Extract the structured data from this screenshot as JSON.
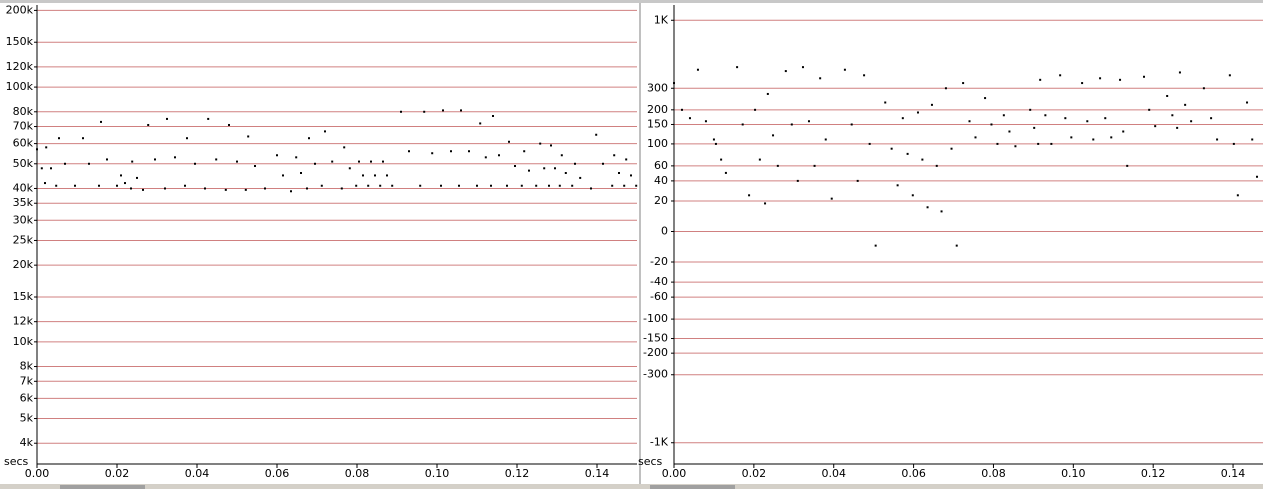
{
  "chart_data": [
    {
      "type": "scatter",
      "x_label": "secs",
      "yscale": "log",
      "grid": true,
      "grid_color": "#d08080",
      "color": "#000000",
      "xlim": [
        0,
        0.15
      ],
      "ylim": [
        3500,
        210000
      ],
      "xticks": [
        {
          "value": 0,
          "label": "0.00"
        },
        {
          "value": 0.02,
          "label": "0.02"
        },
        {
          "value": 0.04,
          "label": "0.04"
        },
        {
          "value": 0.06,
          "label": "0.06"
        },
        {
          "value": 0.08,
          "label": "0.08"
        },
        {
          "value": 0.1,
          "label": "0.10"
        },
        {
          "value": 0.12,
          "label": "0.12"
        },
        {
          "value": 0.14,
          "label": "0.14"
        }
      ],
      "yticks": [
        {
          "value": 200000,
          "label": "200k"
        },
        {
          "value": 150000,
          "label": "150k"
        },
        {
          "value": 120000,
          "label": "120k"
        },
        {
          "value": 100000,
          "label": "100k"
        },
        {
          "value": 80000,
          "label": "80k"
        },
        {
          "value": 70000,
          "label": "70k"
        },
        {
          "value": 60000,
          "label": "60k"
        },
        {
          "value": 50000,
          "label": "50k"
        },
        {
          "value": 40000,
          "label": "40k"
        },
        {
          "value": 35000,
          "label": "35k"
        },
        {
          "value": 30000,
          "label": "30k"
        },
        {
          "value": 25000,
          "label": "25k"
        },
        {
          "value": 20000,
          "label": "20k"
        },
        {
          "value": 15000,
          "label": "15k"
        },
        {
          "value": 12000,
          "label": "12k"
        },
        {
          "value": 10000,
          "label": "10k"
        },
        {
          "value": 8000,
          "label": "8k"
        },
        {
          "value": 7000,
          "label": "7k"
        },
        {
          "value": 6000,
          "label": "6k"
        },
        {
          "value": 5000,
          "label": "5k"
        },
        {
          "value": 4000,
          "label": "4k"
        }
      ],
      "x": [
        0.0,
        0.0012,
        0.002,
        0.0023,
        0.0035,
        0.0048,
        0.0055,
        0.007,
        0.0095,
        0.0115,
        0.013,
        0.0155,
        0.016,
        0.0175,
        0.02,
        0.021,
        0.022,
        0.0235,
        0.0238,
        0.025,
        0.0265,
        0.0278,
        0.0295,
        0.032,
        0.0325,
        0.0345,
        0.037,
        0.0375,
        0.0395,
        0.042,
        0.0428,
        0.0448,
        0.0472,
        0.048,
        0.05,
        0.0522,
        0.0528,
        0.0545,
        0.057,
        0.06,
        0.0615,
        0.0635,
        0.0648,
        0.066,
        0.0675,
        0.068,
        0.0695,
        0.0712,
        0.072,
        0.0738,
        0.0762,
        0.0768,
        0.0782,
        0.0798,
        0.0805,
        0.0815,
        0.0828,
        0.0835,
        0.0845,
        0.0858,
        0.0865,
        0.0875,
        0.0888,
        0.091,
        0.093,
        0.0958,
        0.0968,
        0.0988,
        0.101,
        0.1015,
        0.1035,
        0.1055,
        0.106,
        0.108,
        0.11,
        0.1108,
        0.1122,
        0.1135,
        0.114,
        0.1155,
        0.1175,
        0.118,
        0.1195,
        0.1212,
        0.1218,
        0.123,
        0.1248,
        0.1258,
        0.1268,
        0.128,
        0.1285,
        0.1295,
        0.1307,
        0.1312,
        0.1322,
        0.1338,
        0.1345,
        0.1358,
        0.1385,
        0.1398,
        0.1415,
        0.1438,
        0.1443,
        0.1455,
        0.1468,
        0.1473,
        0.1485,
        0.1498
      ],
      "values": [
        57000,
        48000,
        42000,
        58000,
        48000,
        41000,
        63000,
        50000,
        41000,
        63000,
        50000,
        41000,
        73000,
        52000,
        41000,
        45000,
        42000,
        40000,
        51000,
        44000,
        39500,
        71000,
        52000,
        40000,
        75000,
        53000,
        41000,
        63000,
        50000,
        40000,
        75000,
        52000,
        39500,
        71000,
        51000,
        39500,
        64000,
        49000,
        40000,
        54000,
        45000,
        39000,
        53000,
        46000,
        40000,
        63000,
        50000,
        41000,
        67000,
        51000,
        40000,
        58000,
        48000,
        41000,
        51000,
        45000,
        41000,
        51000,
        45000,
        41000,
        51000,
        45000,
        41000,
        80000,
        56000,
        41000,
        80000,
        55000,
        41000,
        81000,
        56000,
        41000,
        81000,
        56000,
        41000,
        72000,
        53000,
        41000,
        77000,
        54000,
        41000,
        61000,
        49000,
        41000,
        56000,
        47000,
        41000,
        60000,
        48000,
        41000,
        59000,
        48000,
        41000,
        54000,
        46000,
        41000,
        50000,
        44000,
        40000,
        65000,
        50000,
        41000,
        54000,
        46000,
        41000,
        52000,
        45000,
        41000
      ]
    },
    {
      "type": "scatter",
      "x_label": "secs",
      "yscale": "symlog",
      "grid": true,
      "grid_color": "#d08080",
      "color": "#000000",
      "xlim": [
        0,
        0.1475
      ],
      "ylim": [
        -1300,
        1300
      ],
      "xticks": [
        {
          "value": 0,
          "label": "0.00"
        },
        {
          "value": 0.02,
          "label": "0.02"
        },
        {
          "value": 0.04,
          "label": "0.04"
        },
        {
          "value": 0.06,
          "label": "0.06"
        },
        {
          "value": 0.08,
          "label": "0.08"
        },
        {
          "value": 0.1,
          "label": "0.10"
        },
        {
          "value": 0.12,
          "label": "0.12"
        },
        {
          "value": 0.14,
          "label": "0.14"
        }
      ],
      "yticks": [
        {
          "value": 1000,
          "label": "1K"
        },
        300,
        200,
        150,
        100,
        60,
        40,
        20,
        0,
        -20,
        -40,
        -60,
        -100,
        -150,
        -200,
        -300,
        {
          "value": -1000,
          "label": "-1K"
        }
      ],
      "x": [
        0.0,
        0.002,
        0.004,
        0.006,
        0.008,
        0.01,
        0.0105,
        0.0118,
        0.013,
        0.0158,
        0.0172,
        0.0188,
        0.0203,
        0.0215,
        0.0228,
        0.0235,
        0.0248,
        0.026,
        0.028,
        0.0295,
        0.031,
        0.0323,
        0.0338,
        0.0352,
        0.0366,
        0.038,
        0.0395,
        0.0428,
        0.0445,
        0.046,
        0.0476,
        0.049,
        0.0505,
        0.0529,
        0.0545,
        0.056,
        0.0573,
        0.0585,
        0.0598,
        0.0611,
        0.0622,
        0.0635,
        0.0646,
        0.0658,
        0.067,
        0.0681,
        0.0695,
        0.0708,
        0.0724,
        0.074,
        0.0755,
        0.0779,
        0.0795,
        0.081,
        0.0826,
        0.084,
        0.0855,
        0.0892,
        0.0902,
        0.0912,
        0.0917,
        0.093,
        0.0945,
        0.0967,
        0.098,
        0.0995,
        0.1022,
        0.1035,
        0.105,
        0.1067,
        0.108,
        0.1095,
        0.1117,
        0.1125,
        0.1135,
        0.1177,
        0.119,
        0.1205,
        0.1235,
        0.1248,
        0.126,
        0.1267,
        0.128,
        0.1295,
        0.1327,
        0.1345,
        0.136,
        0.1392,
        0.1402,
        0.1412,
        0.1435,
        0.1448,
        0.146
      ],
      "values": [
        330,
        200,
        170,
        420,
        160,
        110,
        100,
        70,
        50,
        440,
        150,
        25,
        200,
        70,
        18,
        270,
        120,
        60,
        410,
        150,
        40,
        440,
        160,
        60,
        360,
        110,
        22,
        420,
        150,
        40,
        380,
        100,
        -8,
        230,
        90,
        35,
        170,
        80,
        25,
        190,
        70,
        15,
        220,
        60,
        12,
        300,
        90,
        -8,
        330,
        160,
        115,
        250,
        150,
        100,
        180,
        130,
        95,
        200,
        140,
        100,
        350,
        180,
        100,
        380,
        170,
        115,
        330,
        160,
        110,
        360,
        170,
        115,
        350,
        130,
        60,
        370,
        200,
        145,
        260,
        180,
        140,
        400,
        220,
        160,
        300,
        170,
        110,
        380,
        100,
        25,
        230,
        110,
        45
      ]
    }
  ]
}
